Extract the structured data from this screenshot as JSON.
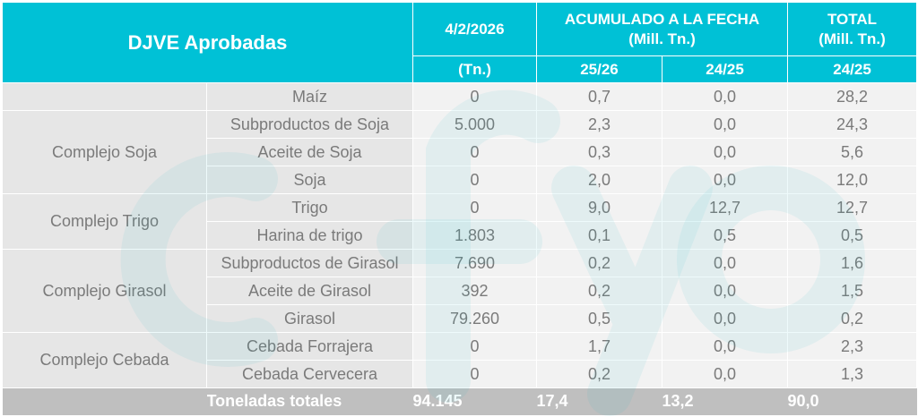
{
  "header": {
    "title": "DJVE Aprobadas",
    "date": "4/2/2026",
    "date_unit": "(Tn.)",
    "acum_title": "ACUMULADO A LA FECHA",
    "acum_unit": "(Mill. Tn.)",
    "total_title": "TOTAL",
    "total_unit": "(Mill. Tn.)",
    "col_2526": "25/26",
    "col_2425": "24/25",
    "col_total_2425": "24/25"
  },
  "groups": [
    {
      "name": "",
      "rows": [
        {
          "product": "Maíz",
          "tn": "0",
          "a2526": "0,7",
          "a2425": "0,0",
          "total": "28,2"
        }
      ]
    },
    {
      "name": "Complejo Soja",
      "rows": [
        {
          "product": "Subproductos de Soja",
          "tn": "5.000",
          "a2526": "2,3",
          "a2425": "0,0",
          "total": "24,3"
        },
        {
          "product": "Aceite de Soja",
          "tn": "0",
          "a2526": "0,3",
          "a2425": "0,0",
          "total": "5,6"
        },
        {
          "product": "Soja",
          "tn": "0",
          "a2526": "2,0",
          "a2425": "0,0",
          "total": "12,0"
        }
      ]
    },
    {
      "name": "Complejo Trigo",
      "rows": [
        {
          "product": "Trigo",
          "tn": "0",
          "a2526": "9,0",
          "a2425": "12,7",
          "total": "12,7"
        },
        {
          "product": "Harina de trigo",
          "tn": "1.803",
          "a2526": "0,1",
          "a2425": "0,5",
          "total": "0,5"
        }
      ]
    },
    {
      "name": "Complejo Girasol",
      "rows": [
        {
          "product": "Subproductos de Girasol",
          "tn": "7.690",
          "a2526": "0,2",
          "a2425": "0,0",
          "total": "1,6"
        },
        {
          "product": "Aceite de Girasol",
          "tn": "392",
          "a2526": "0,2",
          "a2425": "0,0",
          "total": "1,5"
        },
        {
          "product": "Girasol",
          "tn": "79.260",
          "a2526": "0,5",
          "a2425": "0,0",
          "total": "0,2"
        }
      ]
    },
    {
      "name": "Complejo Cebada",
      "rows": [
        {
          "product": "Cebada Forrajera",
          "tn": "0",
          "a2526": "1,7",
          "a2425": "0,0",
          "total": "2,3"
        },
        {
          "product": "Cebada Cervecera",
          "tn": "0",
          "a2526": "0,2",
          "a2425": "0,0",
          "total": "1,3"
        }
      ]
    }
  ],
  "totals": {
    "label": "Toneladas totales",
    "tn": "94.145",
    "a2526": "17,4",
    "a2425": "13,2",
    "total": "90,0"
  },
  "colors": {
    "header": "#00c1d6",
    "label_bg": "#e6e6e6",
    "value_bg": "#f2f2f2",
    "footer_bg": "#bfbfbf",
    "text": "#7a7a7a"
  }
}
